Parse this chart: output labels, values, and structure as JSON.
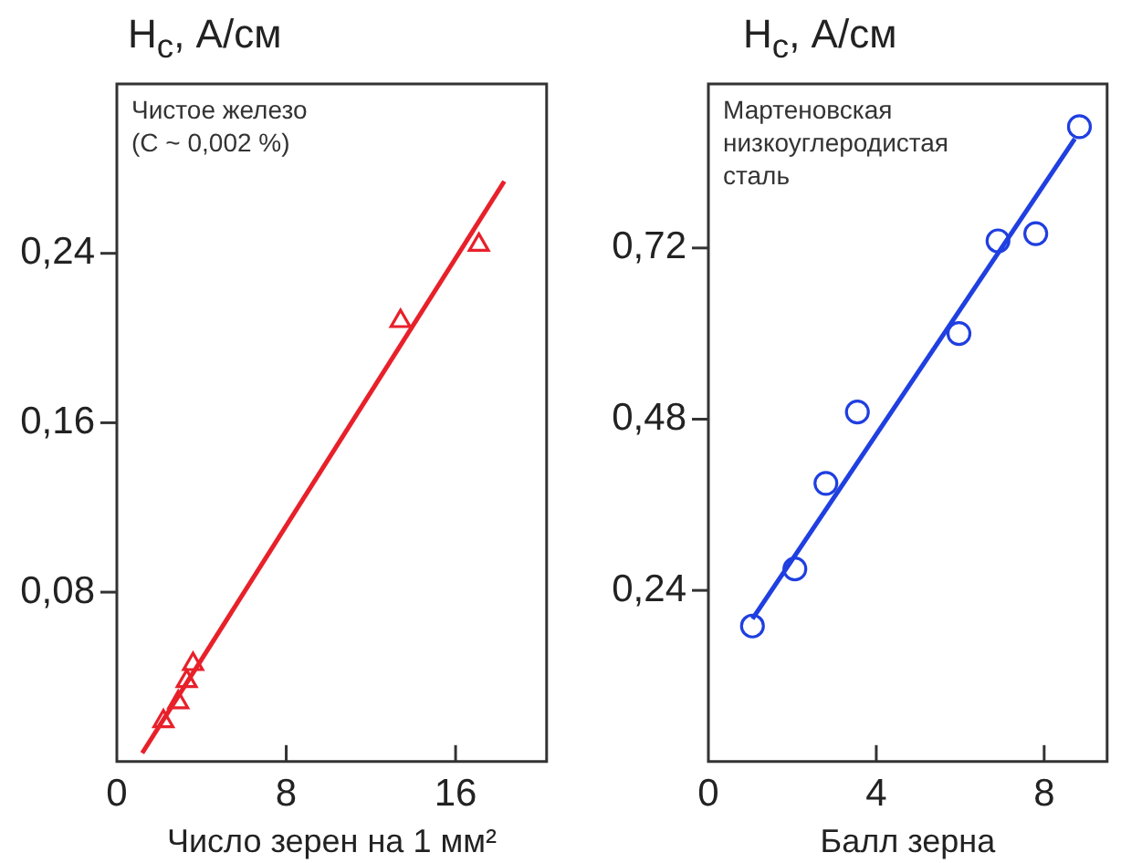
{
  "chart_data": [
    {
      "type": "scatter",
      "ylabel": "H$_{c}$, А/см",
      "xlabel": "Число зерен на 1 мм²",
      "annotations": [
        "Чистое железо",
        "(C ~ 0,002 %)"
      ],
      "xlim": [
        0,
        20.3
      ],
      "xticks": [
        0,
        8,
        16
      ],
      "ylim": [
        0,
        0.32
      ],
      "yticks": [
        {
          "value": 0.08,
          "label": "0,08"
        },
        {
          "value": 0.16,
          "label": "0,16"
        },
        {
          "value": 0.24,
          "label": "0,24"
        }
      ],
      "grid": false,
      "legend": false,
      "series": [
        {
          "type": "scatter",
          "marker": "triangle",
          "color": "#e8202a",
          "x": [
            2.2,
            2.9,
            3.3,
            3.6,
            13.4,
            17.1
          ],
          "values": [
            0.019,
            0.028,
            0.038,
            0.046,
            0.208,
            0.244
          ]
        },
        {
          "type": "line",
          "marker": "none",
          "color": "#e8202a",
          "x": [
            1.2,
            18.3
          ],
          "values": [
            0.004,
            0.274
          ]
        }
      ]
    },
    {
      "type": "scatter",
      "ylabel": "H$_{c}$, А/см",
      "xlabel": "Балл зерна",
      "annotations": [
        "Мартеновская",
        "низкоуглеродистая",
        "сталь"
      ],
      "xlim": [
        0,
        9.5
      ],
      "xticks": [
        0,
        4,
        8
      ],
      "ylim": [
        0,
        0.95
      ],
      "yticks": [
        {
          "value": 0.24,
          "label": "0,24"
        },
        {
          "value": 0.48,
          "label": "0,48"
        },
        {
          "value": 0.72,
          "label": "0,72"
        }
      ],
      "grid": false,
      "legend": false,
      "series": [
        {
          "type": "scatter",
          "marker": "circle",
          "color": "#1f3fe0",
          "x": [
            1.05,
            2.06,
            2.8,
            3.55,
            5.97,
            6.9,
            7.8,
            8.84
          ],
          "values": [
            0.19,
            0.27,
            0.39,
            0.49,
            0.6,
            0.73,
            0.74,
            0.89
          ]
        },
        {
          "type": "line",
          "marker": "none",
          "color": "#1f3fe0",
          "x": [
            1.05,
            8.73
          ],
          "values": [
            0.2,
            0.873
          ]
        }
      ]
    }
  ]
}
